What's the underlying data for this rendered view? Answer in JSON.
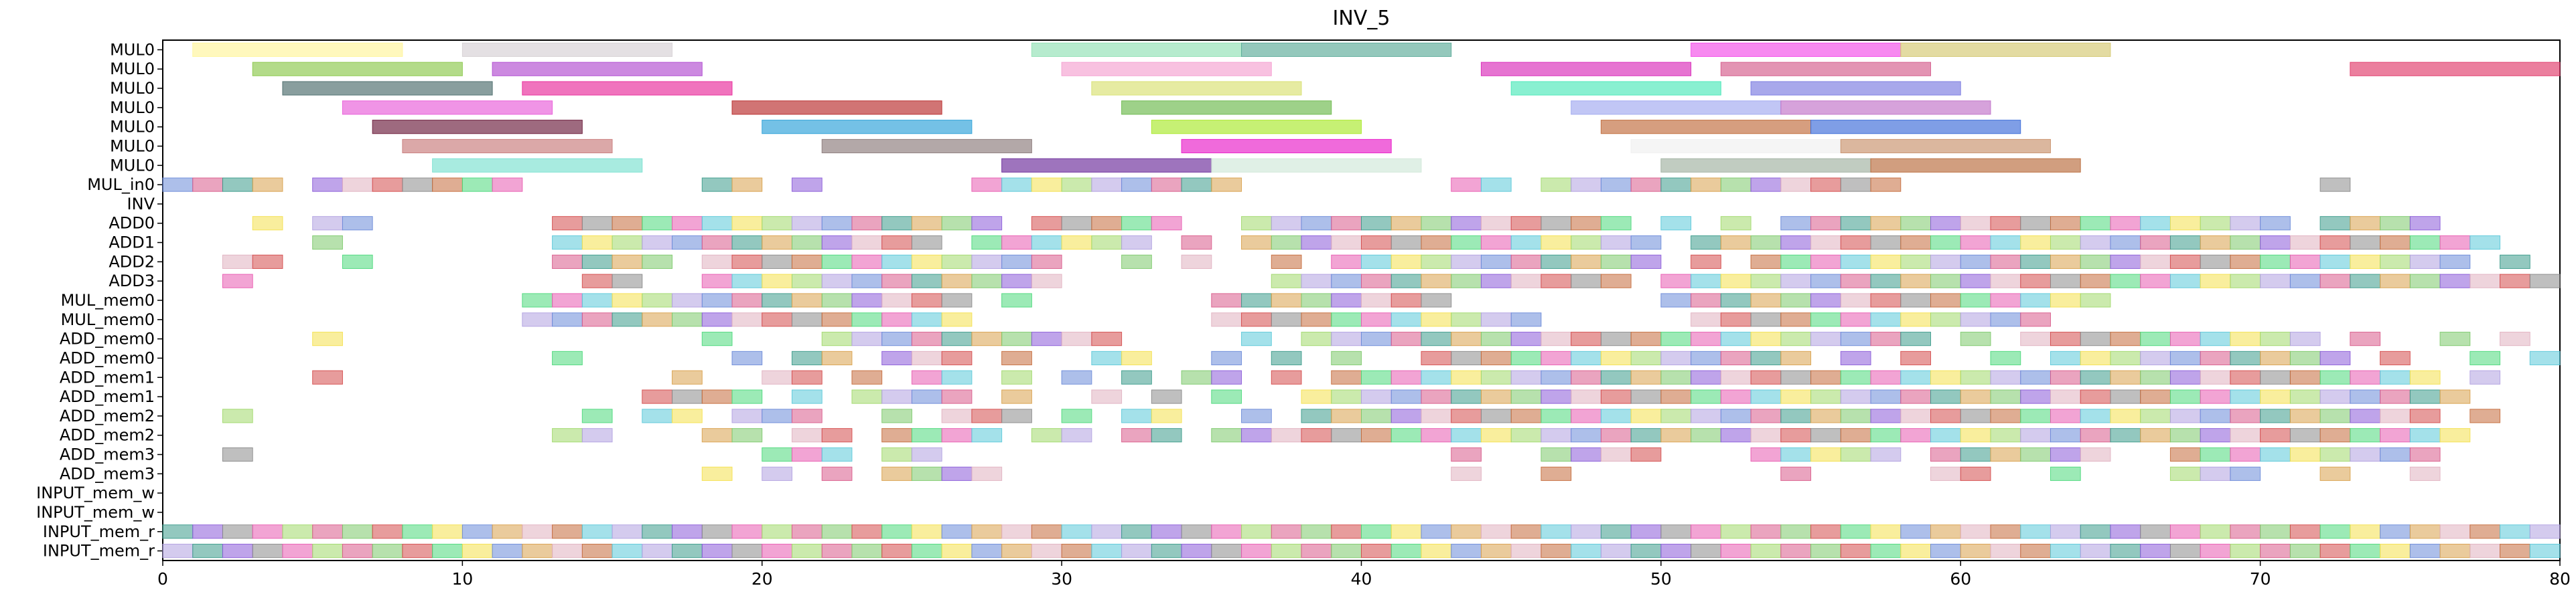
{
  "chart_data": {
    "type": "gantt",
    "title": "INV_5",
    "xlabel": "",
    "ylabel": "",
    "xlim": [
      0,
      80
    ],
    "xticks": [
      0,
      10,
      20,
      30,
      40,
      50,
      60,
      70,
      80
    ],
    "grid": false,
    "rows": [
      "MUL0",
      "MUL0",
      "MUL0",
      "MUL0",
      "MUL0",
      "MUL0",
      "MUL0",
      "MUL_in0",
      "INV",
      "ADD0",
      "ADD1",
      "ADD2",
      "ADD3",
      "MUL_mem0",
      "MUL_mem0",
      "ADD_mem0",
      "ADD_mem0",
      "ADD_mem1",
      "ADD_mem1",
      "ADD_mem2",
      "ADD_mem2",
      "ADD_mem3",
      "ADD_mem3",
      "INPUT_mem_w",
      "INPUT_mem_w",
      "INPUT_mem_r",
      "INPUT_mem_r"
    ],
    "palette": [
      "#f4e04d",
      "#7cc96a",
      "#e85ab0",
      "#3a9a8a",
      "#c46a3a",
      "#6a8ad8",
      "#d44a4a",
      "#a0d86a",
      "#8a5ad8",
      "#5ac8d8",
      "#d8a04a",
      "#4ad87a",
      "#d85a8a",
      "#8a8a8a",
      "#b0a0e0",
      "#e0b0c0"
    ],
    "bars": [
      {
        "row": 0,
        "start": 1,
        "end": 8,
        "color": "#fff59a"
      },
      {
        "row": 0,
        "start": 10,
        "end": 17,
        "color": "#d6d0d4"
      },
      {
        "row": 0,
        "start": 29,
        "end": 36,
        "color": "#8fe0b4"
      },
      {
        "row": 0,
        "start": 36,
        "end": 43,
        "color": "#5aaa98"
      },
      {
        "row": 0,
        "start": 51,
        "end": 58,
        "color": "#f24ae8"
      },
      {
        "row": 0,
        "start": 58,
        "end": 65,
        "color": "#d4c870"
      },
      {
        "row": 1,
        "start": 3,
        "end": 10,
        "color": "#8ac84a"
      },
      {
        "row": 1,
        "start": 11,
        "end": 18,
        "color": "#b04ad0"
      },
      {
        "row": 1,
        "start": 30,
        "end": 37,
        "color": "#f4a0d0"
      },
      {
        "row": 1,
        "start": 44,
        "end": 51,
        "color": "#d82ab8"
      },
      {
        "row": 1,
        "start": 52,
        "end": 59,
        "color": "#d45a8a"
      },
      {
        "row": 1,
        "start": 73,
        "end": 80,
        "color": "#e03a6a"
      },
      {
        "row": 2,
        "start": 4,
        "end": 11,
        "color": "#4a6a6a"
      },
      {
        "row": 2,
        "start": 12,
        "end": 19,
        "color": "#e8289a"
      },
      {
        "row": 2,
        "start": 31,
        "end": 38,
        "color": "#d8e070"
      },
      {
        "row": 2,
        "start": 45,
        "end": 52,
        "color": "#4ae8b8"
      },
      {
        "row": 2,
        "start": 53,
        "end": 60,
        "color": "#7a7ae0"
      },
      {
        "row": 3,
        "start": 6,
        "end": 13,
        "color": "#e85ad8"
      },
      {
        "row": 3,
        "start": 19,
        "end": 26,
        "color": "#b82a2a"
      },
      {
        "row": 3,
        "start": 32,
        "end": 39,
        "color": "#6ab84a"
      },
      {
        "row": 3,
        "start": 47,
        "end": 54,
        "color": "#a0a8f0"
      },
      {
        "row": 3,
        "start": 54,
        "end": 61,
        "color": "#c070c8"
      },
      {
        "row": 4,
        "start": 7,
        "end": 14,
        "color": "#6a1a3a"
      },
      {
        "row": 4,
        "start": 20,
        "end": 27,
        "color": "#2aa0d8"
      },
      {
        "row": 4,
        "start": 33,
        "end": 40,
        "color": "#a8e82a"
      },
      {
        "row": 4,
        "start": 48,
        "end": 55,
        "color": "#c06a3a"
      },
      {
        "row": 4,
        "start": 55,
        "end": 62,
        "color": "#3a6ad8"
      },
      {
        "row": 5,
        "start": 8,
        "end": 15,
        "color": "#c87a7a"
      },
      {
        "row": 5,
        "start": 22,
        "end": 29,
        "color": "#8a7a7a"
      },
      {
        "row": 5,
        "start": 34,
        "end": 41,
        "color": "#e81ac8"
      },
      {
        "row": 5,
        "start": 49,
        "end": 56,
        "color": "#f0f0f0"
      },
      {
        "row": 5,
        "start": 56,
        "end": 63,
        "color": "#c8906a"
      },
      {
        "row": 6,
        "start": 9,
        "end": 16,
        "color": "#7ae0d0"
      },
      {
        "row": 6,
        "start": 28,
        "end": 35,
        "color": "#6a2a9a"
      },
      {
        "row": 6,
        "start": 35,
        "end": 42,
        "color": "#d0e8d8"
      },
      {
        "row": 6,
        "start": 50,
        "end": 57,
        "color": "#a0b0a0"
      },
      {
        "row": 6,
        "start": 57,
        "end": 64,
        "color": "#b86a3a"
      }
    ],
    "cells": [
      "7:0,1,2,3,5,6,7,8,9,10,11,18,19,21,27,28,29,30,31,32,33,34,35,43,44,46,47,48,49,50,51,52,53,54,55,56,57,72",
      "9:3,5,6,13,14,15,16,17,18,19,20,21,22,23,24,25,26,27,29,30,31,32,33,36,37,38,39,40,41,42,43,44,45,46,47,48,50,52,54,55,56,57,58,59,60,61,62,63,64,65,66,67,68,69,70,72,73,74,75",
      "10:5,13,14,15,16,17,18,19,20,21,22,23,24,25,27,28,29,30,31,32,34,36,37,38,39,40,41,42,43,44,45,46,47,48,49,51,52,53,54,55,56,57,58,59,60,61,62,63,64,65,66,67,68,69,70,71,72,73,74,75,76,77",
      "11:2,3,6,13,14,15,16,18,19,20,21,22,23,24,25,26,27,28,29,32,34,37,39,40,41,42,43,44,45,46,47,48,49,51,53,54,55,56,57,58,59,60,61,62,63,64,65,66,67,68,69,70,71,72,73,74,75,76,78",
      "12:2,14,15,18,19,20,21,22,23,24,25,26,27,28,29,37,38,39,40,41,42,43,44,45,46,47,48,50,51,52,53,54,55,56,57,58,59,60,61,62,63,64,65,66,67,68,69,70,71,72,73,74,75,76,77,78,79",
      "13:12,13,14,15,16,17,18,19,20,21,22,23,24,25,26,28,35,36,37,38,39,40,41,42,50,51,52,53,54,55,56,57,58,59,60,61,62,63,64",
      "14:12,13,14,15,16,17,18,19,20,21,22,23,24,25,26,35,36,37,38,39,40,41,42,43,44,45,51,52,53,54,55,56,57,58,59,60,61,62",
      "15:5,18,22,23,24,25,26,27,28,29,30,31,36,38,39,40,41,42,43,44,45,46,47,48,49,50,51,52,53,54,55,56,57,58,60,62,63,64,65,66,67,68,69,70,71,73,76,78",
      "16:13,19,21,22,24,25,26,28,31,32,35,37,39,42,43,44,45,46,47,48,49,50,51,52,53,54,56,58,61,63,64,65,66,67,68,69,70,71,72,74,77,79",
      "17:5,17,20,21,23,25,26,28,30,32,34,35,37,39,40,41,42,43,44,45,46,47,48,49,50,51,52,53,54,55,56,57,58,59,60,61,62,63,64,65,66,67,68,69,70,71,72,73,74,75,77",
      "18:16,17,18,19,21,23,24,25,26,28,31,33,35,38,39,40,41,42,43,44,45,46,47,48,49,50,51,52,53,54,55,56,57,58,59,60,61,62,63,64,65,66,67,68,69,70,71,72,73,74,75,76",
      "19:2,14,16,17,19,20,21,24,26,27,28,30,32,33,36,38,39,40,41,42,43,44,45,46,47,48,49,50,51,52,53,54,55,56,57,58,59,60,61,62,63,64,65,66,67,68,69,70,71,72,73,74,75,77",
      "20:13,14,18,19,21,22,24,25,26,27,29,30,32,33,35,36,37,38,39,40,41,42,43,44,45,46,47,48,49,50,51,52,53,54,55,56,57,58,59,60,61,62,63,64,65,66,67,68,69,70,71,72,73,74,75,76",
      "21:2,20,21,22,24,25,43,46,47,48,49,53,54,55,56,57,59,60,61,62,63,64,67,68,69,70,71,72,73,74,75",
      "22:18,20,22,24,25,26,27,43,46,54,59,60,63,67,68,69,72,75"
    ],
    "input_rows": [
      25,
      26
    ],
    "input_count": 80
  }
}
